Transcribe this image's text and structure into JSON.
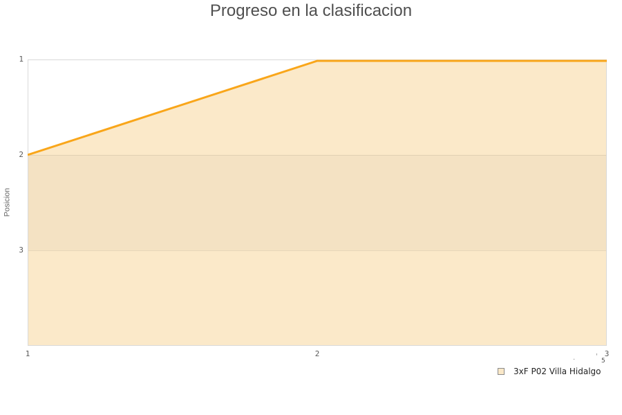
{
  "title": "Progreso en la clasificacion",
  "y_axis": {
    "label": "Posicion",
    "ticks": [
      "1",
      "2",
      "3"
    ],
    "tick_values": [
      1,
      2,
      3
    ]
  },
  "x_axis": {
    "ticks": [
      "1",
      "2",
      "3"
    ],
    "tick_values": [
      1,
      2,
      3
    ]
  },
  "legend": {
    "marker": "square-outline-icon",
    "label": "3xF P02 Villa Hidalgo"
  },
  "stray_marks": {
    "dot": ".",
    "apostrophe": "'",
    "five": "5"
  },
  "colors": {
    "line": "#F9A61A",
    "area_fill": "#FBE9C9",
    "band_fill": "#F4E2C3",
    "plot_border": "#D9D9D9",
    "gridline": "rgba(0,0,0,0.08)",
    "title_text": "#4F4F4F",
    "tick_text": "#595959"
  },
  "chart_data": {
    "type": "area",
    "x": [
      1,
      2,
      3
    ],
    "series": [
      {
        "name": "3xF P02 Villa Hidalgo",
        "values": [
          2,
          1,
          1
        ]
      }
    ],
    "title": "Progreso en la clasificacion",
    "xlabel": "",
    "ylabel": "Posicion",
    "xlim": [
      1,
      3
    ],
    "ylim": [
      1,
      4
    ],
    "y_axis_inverted": true,
    "y_ticks_shown": [
      1,
      2,
      3
    ],
    "x_ticks_shown": [
      1,
      2,
      3
    ],
    "grid": "horizontal",
    "plot_band": {
      "from": 2,
      "to": 3
    },
    "legend_position": "bottom-right"
  }
}
